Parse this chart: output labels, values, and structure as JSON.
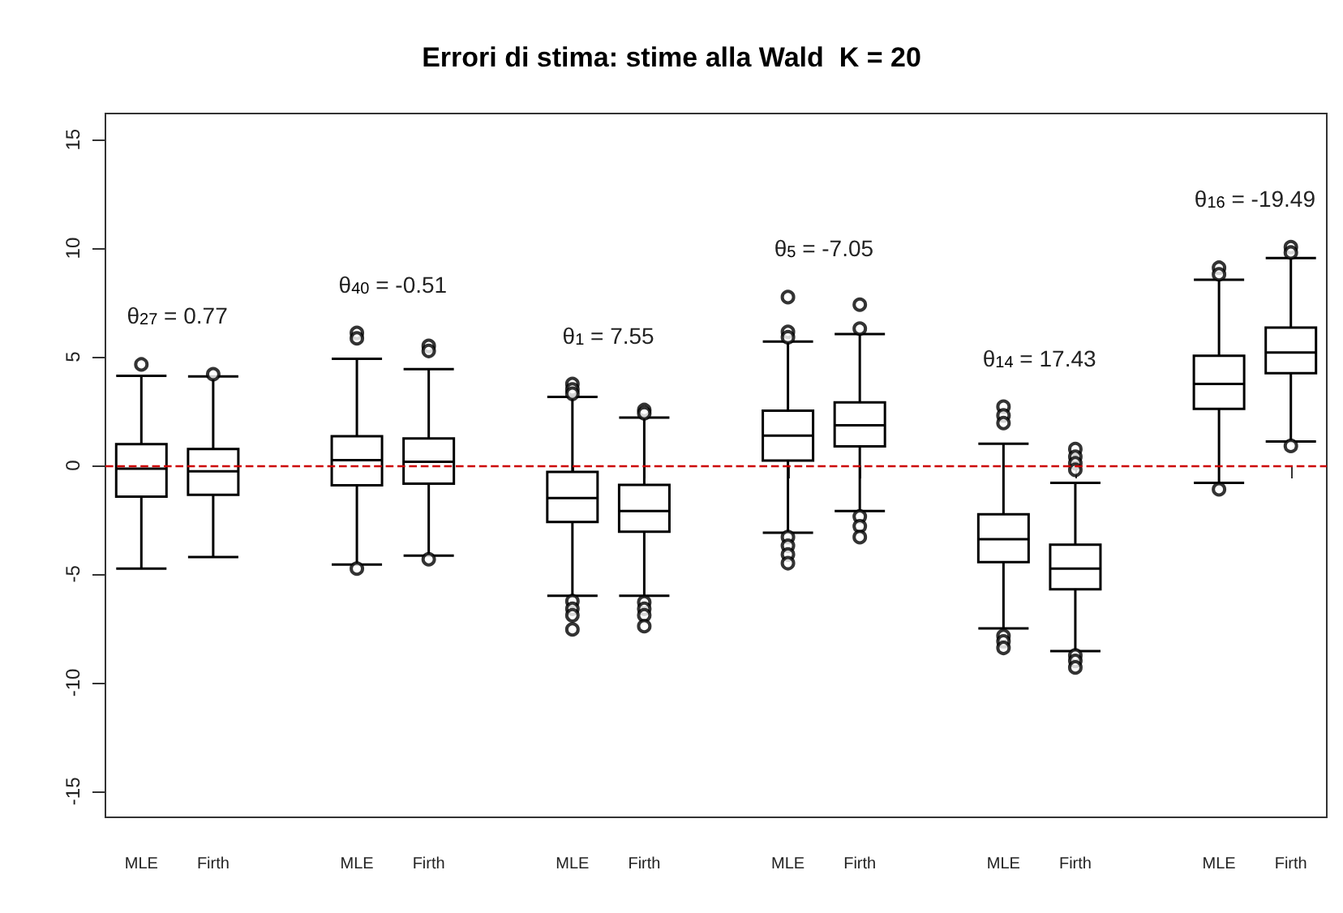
{
  "chart_data": {
    "type": "box",
    "title": "Errori di stima: stime alla Wald  K = 20",
    "categories": [
      "MLE",
      "Firth",
      null,
      "MLE",
      "Firth",
      null,
      "MLE",
      "Firth",
      null,
      "MLE",
      "Firth",
      null,
      "MLE",
      "Firth",
      null,
      "MLE",
      "Firth"
    ],
    "boxes": [
      {
        "low": -4.75,
        "q1": -1.44,
        "median": -0.15,
        "q3": 0.98,
        "high": 4.12,
        "outliers": [
          4.65
        ]
      },
      {
        "low": -4.22,
        "q1": -1.35,
        "median": -0.27,
        "q3": 0.76,
        "high": 4.1,
        "outliers": [
          4.2
        ]
      },
      null,
      {
        "low": -4.56,
        "q1": -0.91,
        "median": 0.24,
        "q3": 1.34,
        "high": 4.91,
        "outliers": [
          6.1,
          5.85,
          -4.75
        ]
      },
      {
        "low": -4.15,
        "q1": -0.84,
        "median": 0.17,
        "q3": 1.24,
        "high": 4.43,
        "outliers": [
          5.5,
          5.27,
          -4.32
        ]
      },
      null,
      {
        "low": -6.0,
        "q1": -2.6,
        "median": -1.5,
        "q3": -0.3,
        "high": 3.15,
        "outliers": [
          3.75,
          3.5,
          3.3,
          -6.25,
          -6.6,
          -6.9,
          -7.55
        ]
      },
      {
        "low": -6.0,
        "q1": -3.05,
        "median": -2.1,
        "q3": -0.9,
        "high": 2.2,
        "outliers": [
          2.55,
          2.4,
          -6.3,
          -6.6,
          -6.9,
          -7.4
        ]
      },
      null,
      {
        "low": -3.1,
        "q1": 0.22,
        "median": 1.37,
        "q3": 2.52,
        "high": 5.7,
        "outliers": [
          7.75,
          6.15,
          5.9,
          -3.3,
          -3.7,
          -4.1,
          -4.5
        ]
      },
      {
        "low": -2.1,
        "q1": 0.88,
        "median": 1.85,
        "q3": 2.9,
        "high": 6.05,
        "outliers": [
          7.4,
          6.3,
          -2.35,
          -2.8,
          -3.3
        ]
      },
      null,
      {
        "low": -7.5,
        "q1": -4.45,
        "median": -3.4,
        "q3": -2.25,
        "high": 1.0,
        "outliers": [
          2.7,
          2.3,
          1.95,
          -7.85,
          -8.1,
          -8.4
        ]
      },
      {
        "low": -8.55,
        "q1": -5.7,
        "median": -4.75,
        "q3": -3.65,
        "high": -0.8,
        "outliers": [
          0.75,
          0.4,
          0.1,
          -0.2,
          -8.75,
          -9.0,
          -9.3
        ]
      },
      null,
      {
        "low": -0.8,
        "q1": 2.6,
        "median": 3.75,
        "q3": 5.05,
        "high": 8.55,
        "outliers": [
          9.1,
          8.8,
          -1.1
        ]
      },
      {
        "low": 1.1,
        "q1": 4.25,
        "median": 5.2,
        "q3": 6.35,
        "high": 9.55,
        "outliers": [
          10.05,
          9.8,
          0.9
        ]
      }
    ],
    "ylim": [
      -16.2,
      16.2
    ],
    "yticks": [
      -15,
      -10,
      -5,
      0,
      5,
      10,
      15
    ],
    "ref_lines": [
      {
        "axis": "y",
        "value": 0,
        "color": "#cc0000",
        "line_style": "dashed"
      }
    ],
    "annotations": [
      "θ$_{27}$ = 0.77",
      "θ$_{40}$ = -0.51",
      "θ$_{1}$ = 7.55",
      "θ$_{5}$ = -7.05",
      "θ$_{14}$ = 17.43",
      "θ$_{16}$ = -19.49"
    ],
    "grid": false
  }
}
